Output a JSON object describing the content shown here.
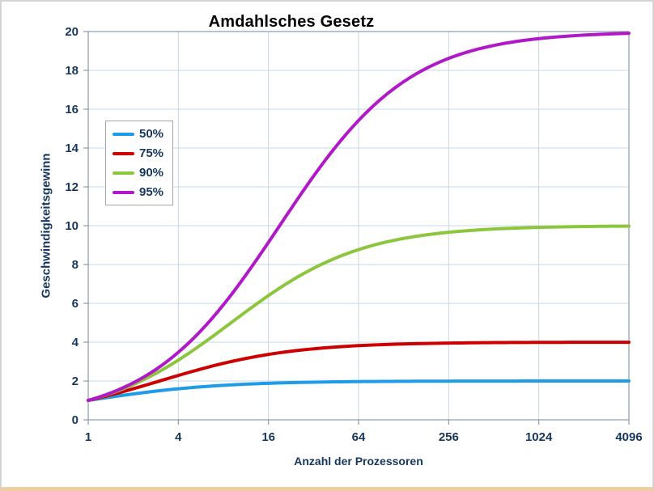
{
  "frame": {
    "background": "#ffffff",
    "border_color": "#d4d4d4",
    "bottom_accent_color": "#f0cda2"
  },
  "chart_data": {
    "type": "line",
    "title": "Amdahlsches Gesetz",
    "xlabel": "Anzahl der Prozessoren",
    "ylabel": "Geschwindigkeitsgewinn",
    "x_scale": "log2",
    "x_log2_max": 12,
    "xlim": [
      1,
      4096
    ],
    "ylim": [
      0,
      20
    ],
    "x_ticks": [
      1,
      4,
      16,
      64,
      256,
      1024,
      4096
    ],
    "y_ticks": [
      0,
      2,
      4,
      6,
      8,
      10,
      12,
      14,
      16,
      18,
      20
    ],
    "grid": true,
    "legend_position": "upper-left-inside",
    "x": [
      1,
      2,
      4,
      8,
      16,
      32,
      64,
      128,
      256,
      512,
      1024,
      2048,
      4096
    ],
    "series": [
      {
        "name": "50%",
        "parallel_fraction": 0.5,
        "color": "#1f9ce8",
        "values": [
          1.0,
          1.33,
          1.6,
          1.78,
          1.88,
          1.94,
          1.97,
          1.98,
          1.99,
          2.0,
          2.0,
          2.0,
          2.0
        ]
      },
      {
        "name": "75%",
        "parallel_fraction": 0.75,
        "color": "#cc0000",
        "values": [
          1.0,
          1.6,
          2.29,
          2.91,
          3.37,
          3.66,
          3.82,
          3.91,
          3.95,
          3.98,
          3.99,
          3.99,
          4.0
        ]
      },
      {
        "name": "90%",
        "parallel_fraction": 0.9,
        "color": "#8cc63e",
        "values": [
          1.0,
          1.82,
          3.08,
          4.71,
          6.4,
          7.8,
          8.77,
          9.34,
          9.66,
          9.83,
          9.91,
          9.96,
          9.98
        ]
      },
      {
        "name": "95%",
        "parallel_fraction": 0.95,
        "color": "#b118c8",
        "values": [
          1.0,
          1.9,
          3.48,
          5.93,
          9.14,
          12.55,
          15.42,
          17.41,
          18.62,
          19.28,
          19.64,
          19.82,
          19.91
        ]
      }
    ],
    "style": {
      "grid_color": "#c6d6e4",
      "axis_color": "#8c9bab",
      "tick_text_color": "#17365d",
      "line_width": 4
    }
  }
}
